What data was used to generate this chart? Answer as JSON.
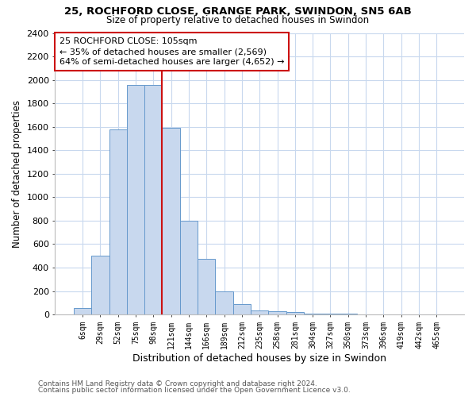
{
  "title1": "25, ROCHFORD CLOSE, GRANGE PARK, SWINDON, SN5 6AB",
  "title2": "Size of property relative to detached houses in Swindon",
  "xlabel": "Distribution of detached houses by size in Swindon",
  "ylabel": "Number of detached properties",
  "categories": [
    "6sqm",
    "29sqm",
    "52sqm",
    "75sqm",
    "98sqm",
    "121sqm",
    "144sqm",
    "166sqm",
    "189sqm",
    "212sqm",
    "235sqm",
    "258sqm",
    "281sqm",
    "304sqm",
    "327sqm",
    "350sqm",
    "373sqm",
    "396sqm",
    "419sqm",
    "442sqm",
    "465sqm"
  ],
  "values": [
    55,
    500,
    1580,
    1960,
    1960,
    1590,
    800,
    475,
    195,
    90,
    35,
    30,
    20,
    5,
    5,
    5,
    0,
    0,
    0,
    0,
    0
  ],
  "bar_color": "#c8d8ee",
  "bar_edge_color": "#6699cc",
  "vline_x": 4.5,
  "vline_color": "#cc1111",
  "annotation_text": "25 ROCHFORD CLOSE: 105sqm\n← 35% of detached houses are smaller (2,569)\n64% of semi-detached houses are larger (4,652) →",
  "annotation_box_color": "#ffffff",
  "annotation_box_edge": "#cc1111",
  "ylim": [
    0,
    2400
  ],
  "yticks": [
    0,
    200,
    400,
    600,
    800,
    1000,
    1200,
    1400,
    1600,
    1800,
    2000,
    2200,
    2400
  ],
  "footnote1": "Contains HM Land Registry data © Crown copyright and database right 2024.",
  "footnote2": "Contains public sector information licensed under the Open Government Licence v3.0.",
  "bg_color": "#ffffff",
  "plot_bg_color": "#ffffff",
  "grid_color": "#c8d8ee"
}
